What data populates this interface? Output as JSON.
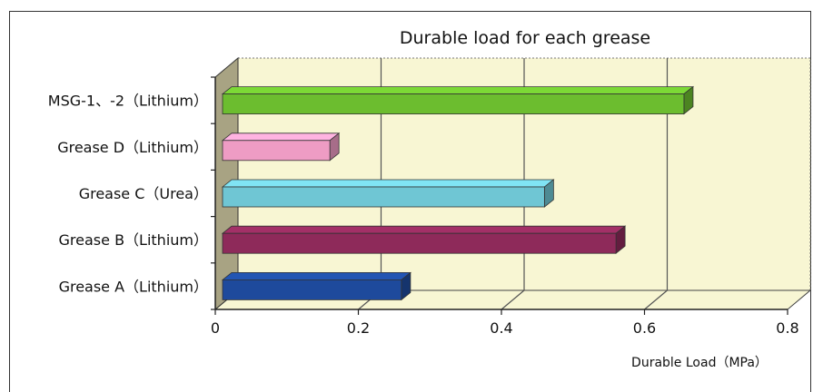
{
  "chart_data": {
    "type": "bar",
    "orientation": "horizontal",
    "style": "3d",
    "title": "Durable load for each grease",
    "xlabel": "Durable Load（MPa）",
    "ylabel": "",
    "xlim": [
      0,
      0.8
    ],
    "xticks": [
      "0",
      "0.2",
      "0.4",
      "0.6",
      "0.8"
    ],
    "grid": true,
    "plot_background": "#f8f6d3",
    "categories": [
      "Grease A（Lithium）",
      "Grease B（Lithium）",
      "Grease C（Urea）",
      "Grease D（Lithium）",
      "MSG-1、-2（Lithium）"
    ],
    "values": [
      0.25,
      0.55,
      0.45,
      0.15,
      0.645
    ],
    "colors": [
      "#1e4a9c",
      "#8e2a5a",
      "#6fc6d4",
      "#ee9cc4",
      "#6cbd2f"
    ]
  }
}
